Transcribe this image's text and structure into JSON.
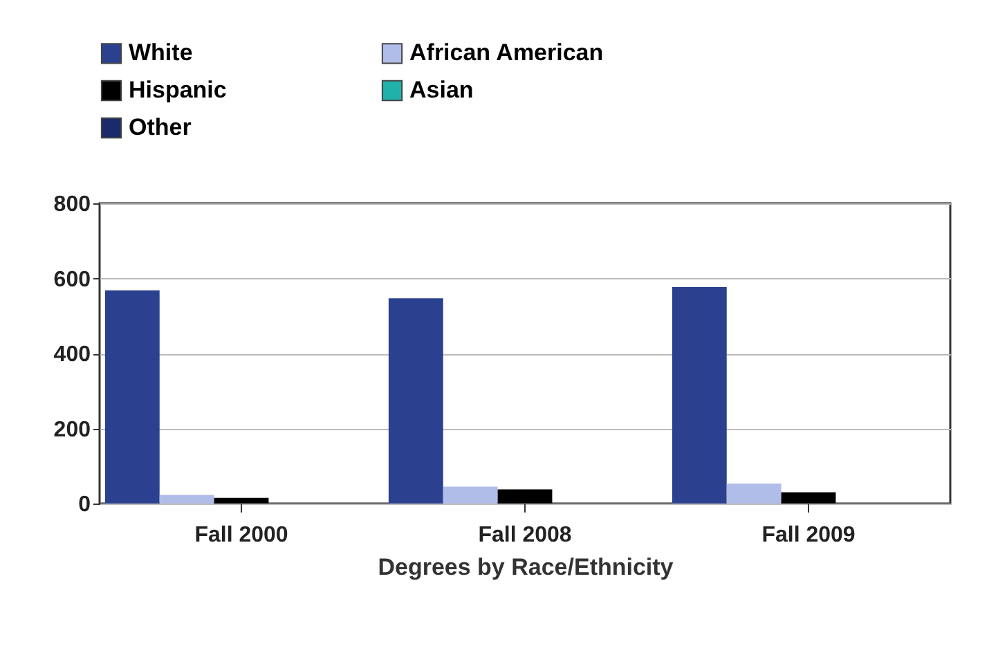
{
  "chart_data": {
    "type": "bar",
    "xlabel": "Degrees by Race/Ethnicity",
    "categories": [
      "Fall 2000",
      "Fall 2008",
      "Fall 2009"
    ],
    "series": [
      {
        "name": "White",
        "color": "#2b4190",
        "values": [
          568,
          547,
          577
        ]
      },
      {
        "name": "African American",
        "color": "#b0bde8",
        "values": [
          23,
          45,
          53
        ]
      },
      {
        "name": "Hispanic",
        "color": "#000000",
        "values": [
          15,
          38,
          30
        ]
      },
      {
        "name": "Asian",
        "color": "#20b2aa",
        "values": [
          0,
          0,
          0
        ]
      },
      {
        "name": "Other",
        "color": "#1a2a6a",
        "values": [
          0,
          0,
          0
        ]
      }
    ],
    "ylim": [
      0,
      800
    ],
    "yticks": [
      0,
      200,
      400,
      600,
      800
    ],
    "grid": "y",
    "legend": "top left"
  }
}
